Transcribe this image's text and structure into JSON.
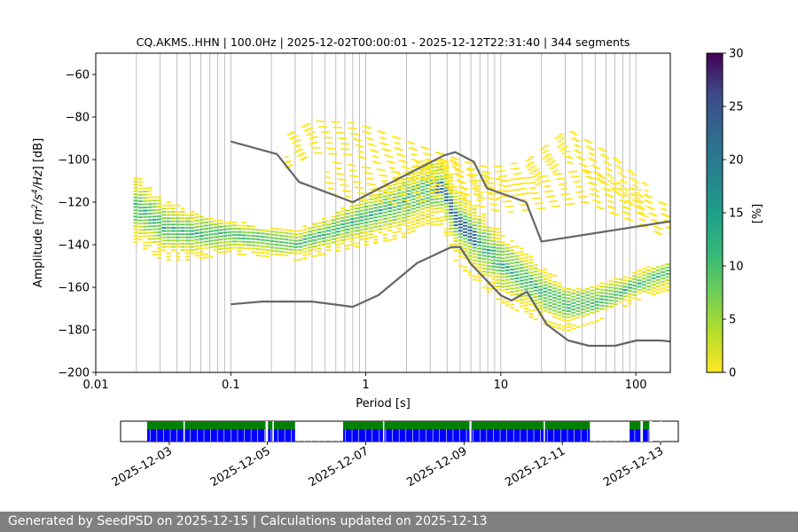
{
  "chart_data": [
    {
      "type": "heatmap",
      "title": "CQ.AKMS..HHN | 100.0Hz | 2025-12-02T00:00:01 - 2025-12-12T22:31:40 | 344 segments",
      "xlabel": "Period [s]",
      "ylabel_parts": [
        "Amplitude [",
        "m",
        "2",
        "/s",
        "4",
        "/Hz",
        "] [dB]"
      ],
      "xscale": "log",
      "xlim": [
        0.01,
        180
      ],
      "ylim": [
        -200,
        -50
      ],
      "x_ticks": [
        0.01,
        0.1,
        1,
        10,
        100
      ],
      "x_tick_labels": [
        "0.01",
        "0.1",
        "1",
        "10",
        "100"
      ],
      "y_ticks": [
        -200,
        -180,
        -160,
        -140,
        -120,
        -100,
        -80,
        -60
      ],
      "y_tick_labels": [
        "−200",
        "−180",
        "−160",
        "−140",
        "−120",
        "−100",
        "−80",
        "−60"
      ],
      "grid": "x-only, log minor",
      "noise_models": [
        {
          "name": "NHNM",
          "color": "#666666",
          "points": [
            [
              0.1,
              -91.5
            ],
            [
              0.22,
              -97.4
            ],
            [
              0.32,
              -110.5
            ],
            [
              0.8,
              -120
            ],
            [
              3.8,
              -98
            ],
            [
              4.6,
              -96.5
            ],
            [
              6.3,
              -101
            ],
            [
              7.9,
              -113.5
            ],
            [
              15.4,
              -120
            ],
            [
              20,
              -138.5
            ],
            [
              180,
              -129
            ]
          ]
        },
        {
          "name": "NLNM",
          "color": "#666666",
          "points": [
            [
              0.1,
              -168
            ],
            [
              0.17,
              -166.7
            ],
            [
              0.4,
              -166.7
            ],
            [
              0.8,
              -169.2
            ],
            [
              1.24,
              -163.7
            ],
            [
              2.4,
              -148.6
            ],
            [
              4.3,
              -141.1
            ],
            [
              5,
              -141.1
            ],
            [
              6,
              -149
            ],
            [
              10,
              -163.8
            ],
            [
              12,
              -166.2
            ],
            [
              15.6,
              -162.1
            ],
            [
              21.9,
              -177.5
            ],
            [
              31.6,
              -185
            ],
            [
              45,
              -187.5
            ],
            [
              70,
              -187.5
            ],
            [
              101,
              -185
            ],
            [
              154,
              -185
            ],
            [
              180,
              -185.5
            ]
          ]
        }
      ],
      "density_ridge": {
        "points": [
          [
            0.02,
            -122
          ],
          [
            0.03,
            -131
          ],
          [
            0.05,
            -134
          ],
          [
            0.1,
            -135
          ],
          [
            0.2,
            -138
          ],
          [
            0.3,
            -139
          ],
          [
            0.5,
            -134
          ],
          [
            1,
            -126
          ],
          [
            2,
            -118
          ],
          [
            3,
            -113
          ],
          [
            3.6,
            -112
          ],
          [
            4.5,
            -128
          ],
          [
            6,
            -136
          ],
          [
            10,
            -149
          ],
          [
            20,
            -162
          ],
          [
            30,
            -168
          ],
          [
            50,
            -166
          ],
          [
            100,
            -158
          ],
          [
            180,
            -152
          ]
        ]
      },
      "density_outliers": [
        {
          "points": [
            [
              0.25,
              -96
            ],
            [
              0.4,
              -89
            ],
            [
              0.8,
              -90
            ],
            [
              1.5,
              -96
            ],
            [
              3,
              -103
            ],
            [
              5,
              -108
            ],
            [
              8,
              -111
            ],
            [
              15,
              -108
            ],
            [
              30,
              -93
            ],
            [
              60,
              -104
            ],
            [
              120,
              -120
            ]
          ]
        },
        {
          "points": [
            [
              0.5,
              -108
            ],
            [
              1,
              -111
            ],
            [
              2,
              -114
            ],
            [
              3,
              -110
            ],
            [
              4,
              -107
            ],
            [
              6,
              -113
            ],
            [
              10,
              -117
            ],
            [
              20,
              -115
            ],
            [
              40,
              -112
            ],
            [
              100,
              -122
            ],
            [
              180,
              -130
            ]
          ]
        }
      ],
      "colorbar": {
        "label": "[%]",
        "min": 0,
        "max": 30,
        "ticks": [
          0,
          5,
          10,
          15,
          20,
          25,
          30
        ],
        "tick_labels": [
          "0",
          "5",
          "10",
          "15",
          "20",
          "25",
          "30"
        ],
        "colormap": "viridis_r"
      }
    },
    {
      "type": "timeline",
      "title": "data coverage",
      "tick_labels": [
        "2025-12-03",
        "2025-12-05",
        "2025-12-07",
        "2025-12-09",
        "2025-12-11",
        "2025-12-13"
      ],
      "range_days": [
        0.0,
        11.35
      ],
      "tick_day_positions": [
        0.99,
        2.99,
        4.99,
        6.99,
        8.99,
        10.99
      ],
      "coverage_days": [
        [
          0.54,
          3.55
        ],
        [
          4.53,
          9.55
        ],
        [
          10.36,
          11.5
        ]
      ],
      "gap_days": [
        [
          2.95,
          3.0
        ],
        [
          3.09,
          3.12
        ],
        [
          7.1,
          7.14
        ],
        [
          10.58,
          10.63
        ],
        [
          10.76,
          10.82
        ],
        [
          10.98,
          11.0
        ],
        [
          1.28,
          1.3
        ],
        [
          5.34,
          5.36
        ],
        [
          8.61,
          8.63
        ]
      ],
      "colors": {
        "coverage": "#008000",
        "segments": "#0000ff"
      }
    }
  ],
  "footer": {
    "text": "Generated by SeedPSD on 2025-12-15 | Calculations updated on 2025-12-13"
  }
}
